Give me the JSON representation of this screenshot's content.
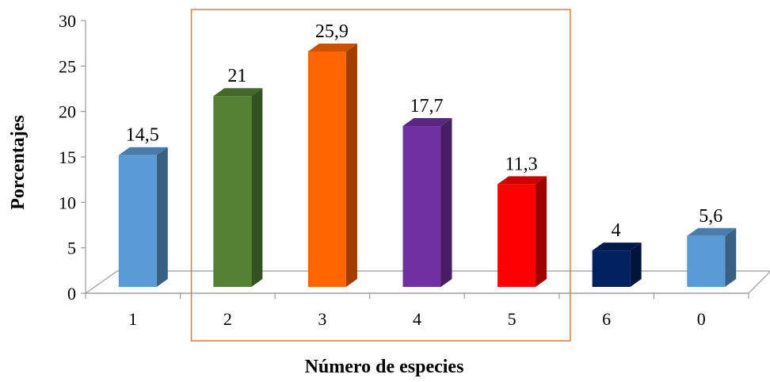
{
  "chart_data": {
    "type": "bar",
    "style": "3d-column",
    "categories": [
      "1",
      "2",
      "3",
      "4",
      "5",
      "6",
      "0"
    ],
    "values": [
      14.5,
      21,
      25.9,
      17.7,
      11.3,
      4,
      5.6
    ],
    "data_labels": [
      "14,5",
      "21",
      "25,9",
      "17,7",
      "11,3",
      "4",
      "5,6"
    ],
    "bar_colors": [
      "#5b9bd5",
      "#548235",
      "#ff6600",
      "#7030a0",
      "#ff0000",
      "#002060",
      "#5b9bd5"
    ],
    "xlabel": "Número de especies",
    "ylabel": "Porcentajes",
    "ylim": [
      0,
      30
    ],
    "yticks": [
      0,
      5,
      10,
      15,
      20,
      25,
      30
    ],
    "grid": false,
    "legend": "none",
    "highlight": {
      "categories": [
        "2",
        "3",
        "4",
        "5"
      ],
      "color": "#e07b39"
    }
  }
}
